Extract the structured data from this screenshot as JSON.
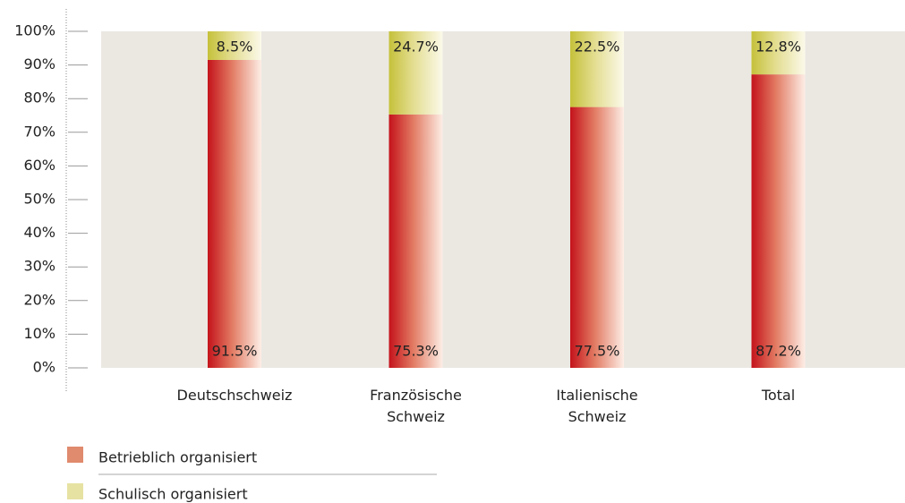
{
  "chart_data": {
    "type": "stacked-bar",
    "categories": [
      "Deutschschweiz",
      "Französische Schweiz",
      "Italienische Schweiz",
      "Total"
    ],
    "series": [
      {
        "name": "Betrieblich organisiert",
        "color": "#e08a6e",
        "values": [
          91.5,
          75.3,
          77.5,
          87.2
        ],
        "value_labels": [
          "91.5%",
          "75.3%",
          "77.5%",
          "87.2%"
        ]
      },
      {
        "name": "Schulisch organisiert",
        "color": "#e6e2a2",
        "values": [
          8.5,
          24.7,
          22.5,
          12.8
        ],
        "value_labels": [
          "8.5%",
          "24.7%",
          "22.5%",
          "12.8%"
        ]
      }
    ],
    "ylim": [
      0,
      100
    ],
    "yticks": [
      {
        "value": 0,
        "label": "0%"
      },
      {
        "value": 10,
        "label": "10%"
      },
      {
        "value": 20,
        "label": "20%"
      },
      {
        "value": 30,
        "label": "30%"
      },
      {
        "value": 40,
        "label": "40%"
      },
      {
        "value": 50,
        "label": "50%"
      },
      {
        "value": 60,
        "label": "60%"
      },
      {
        "value": 70,
        "label": "70%"
      },
      {
        "value": 80,
        "label": "80%"
      },
      {
        "value": 90,
        "label": "90%"
      },
      {
        "value": 100,
        "label": "100%"
      }
    ]
  }
}
